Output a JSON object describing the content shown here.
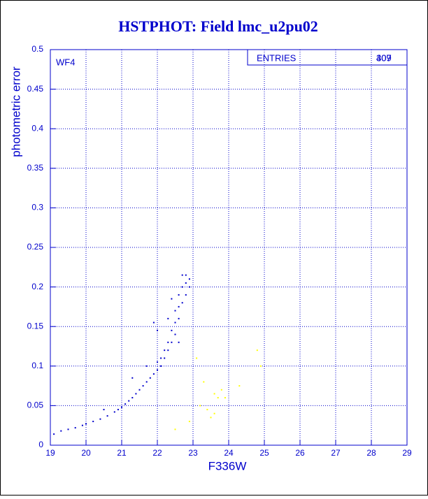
{
  "chart_data": {
    "type": "scatter",
    "title": "HSTPHOT: Field lmc_u2pu02",
    "xlabel": "F336W",
    "ylabel": "photometric error",
    "annotations": [
      "WF4"
    ],
    "stats": {
      "label": "ENTRIES",
      "values": [
        409,
        307
      ]
    },
    "xlim": [
      19,
      29
    ],
    "ylim": [
      0,
      0.5
    ],
    "xticks": [
      19,
      20,
      21,
      22,
      23,
      24,
      25,
      26,
      27,
      28,
      29
    ],
    "yticks": [
      0,
      0.05,
      0.1,
      0.15,
      0.2,
      0.25,
      0.3,
      0.35,
      0.4,
      0.45,
      0.5
    ],
    "grid": true,
    "series": [
      {
        "color": "#0000cc",
        "x": [
          19.1,
          19.3,
          19.5,
          19.7,
          19.9,
          20.0,
          20.2,
          20.4,
          20.6,
          20.8,
          20.9,
          21.0,
          21.1,
          21.2,
          21.3,
          21.4,
          21.5,
          21.6,
          21.7,
          21.8,
          21.9,
          22.0,
          22.0,
          22.1,
          22.1,
          22.2,
          22.2,
          22.3,
          22.3,
          22.4,
          22.4,
          22.5,
          22.5,
          22.5,
          22.6,
          22.6,
          22.6,
          22.7,
          22.7,
          22.7,
          22.8,
          22.8,
          22.8,
          22.9,
          22.9,
          21.9,
          22.0,
          20.5,
          21.3,
          21.7,
          22.3,
          22.6,
          22.4
        ],
        "values": [
          0.014,
          0.018,
          0.02,
          0.022,
          0.025,
          0.027,
          0.03,
          0.033,
          0.037,
          0.042,
          0.045,
          0.048,
          0.052,
          0.056,
          0.06,
          0.065,
          0.07,
          0.075,
          0.08,
          0.085,
          0.09,
          0.095,
          0.105,
          0.1,
          0.11,
          0.11,
          0.12,
          0.12,
          0.13,
          0.13,
          0.145,
          0.14,
          0.155,
          0.17,
          0.16,
          0.175,
          0.19,
          0.18,
          0.2,
          0.215,
          0.19,
          0.205,
          0.215,
          0.2,
          0.21,
          0.155,
          0.145,
          0.045,
          0.085,
          0.1,
          0.16,
          0.13,
          0.185
        ]
      },
      {
        "color": "#ffff00",
        "x": [
          23.1,
          23.3,
          23.6,
          23.7,
          23.8,
          23.9,
          23.5,
          23.6,
          24.3,
          24.8,
          24.9,
          22.9,
          22.5,
          23.2,
          23.4
        ],
        "values": [
          0.11,
          0.08,
          0.065,
          0.06,
          0.07,
          0.06,
          0.035,
          0.04,
          0.075,
          0.12,
          0.1,
          0.03,
          0.02,
          0.05,
          0.045
        ]
      }
    ]
  }
}
